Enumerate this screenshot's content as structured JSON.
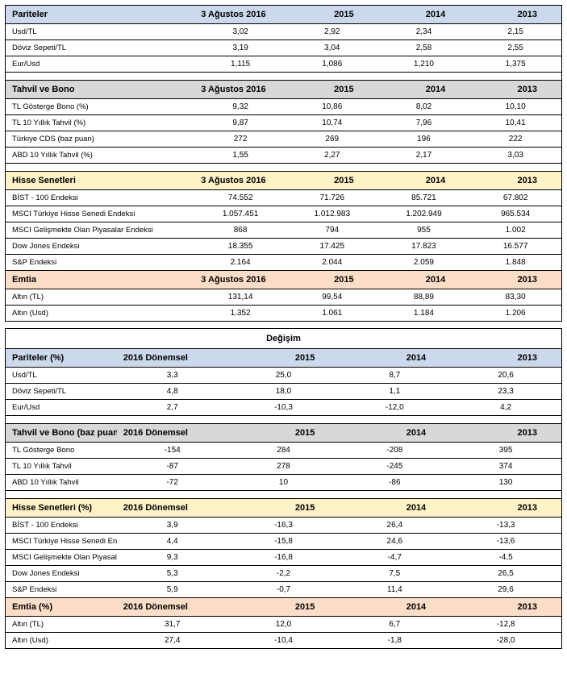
{
  "colors": {
    "blue": "#ccd9ec",
    "gray": "#d8d8d8",
    "yellow": "#fff2c7",
    "peach": "#fcdec8",
    "white": "#ffffff"
  },
  "absHeaders": [
    "3 Ağustos 2016",
    "2015",
    "2014",
    "2013"
  ],
  "chgHeaders": [
    "2016 Dönemsel",
    "2015",
    "2014",
    "2013"
  ],
  "changeTitle": "Değişim",
  "sections_abs": [
    {
      "title": "Pariteler",
      "hdrColor": "blue",
      "rows": [
        {
          "label": "Usd/TL",
          "vals": [
            "3,02",
            "2,92",
            "2,34",
            "2,15"
          ]
        },
        {
          "label": "Döviz Sepeti/TL",
          "vals": [
            "3,19",
            "3,04",
            "2,58",
            "2,55"
          ]
        },
        {
          "label": "Eur/Usd",
          "vals": [
            "1,115",
            "1,086",
            "1,210",
            "1,375"
          ]
        }
      ]
    },
    {
      "title": "Tahvil ve Bono",
      "hdrColor": "gray",
      "rows": [
        {
          "label": "TL Gösterge Bono (%)",
          "vals": [
            "9,32",
            "10,86",
            "8,02",
            "10,10"
          ]
        },
        {
          "label": "TL 10 Yıllık Tahvil (%)",
          "vals": [
            "9,87",
            "10,74",
            "7,96",
            "10,41"
          ]
        },
        {
          "label": "Türkiye CDS (baz puan)",
          "vals": [
            "272",
            "269",
            "196",
            "222"
          ]
        },
        {
          "label": "ABD 10 Yıllık Tahvil (%)",
          "vals": [
            "1,55",
            "2,27",
            "2,17",
            "3,03"
          ]
        }
      ]
    },
    {
      "title": "Hisse Senetleri",
      "hdrColor": "yellow",
      "rows": [
        {
          "label": "BİST - 100 Endeksi",
          "vals": [
            "74.552",
            "71.726",
            "85.721",
            "67.802"
          ]
        },
        {
          "label": "MSCI Türkiye Hisse Senedi Endeksi",
          "vals": [
            "1.057.451",
            "1.012.983",
            "1.202.949",
            "965.534"
          ]
        },
        {
          "label": "MSCI Gelişmekte Olan Piyasalar Endeksi",
          "vals": [
            "868",
            "794",
            "955",
            "1.002"
          ]
        },
        {
          "label": "Dow Jones Endeksi",
          "vals": [
            "18.355",
            "17.425",
            "17.823",
            "16.577"
          ]
        },
        {
          "label": "S&P Endeksi",
          "vals": [
            "2.164",
            "2.044",
            "2.059",
            "1.848"
          ]
        }
      ]
    },
    {
      "title": "Emtia",
      "hdrColor": "peach",
      "rows": [
        {
          "label": "Altın (TL)",
          "vals": [
            "131,14",
            "99,54",
            "88,89",
            "83,30"
          ]
        },
        {
          "label": "Altın (Usd)",
          "vals": [
            "1.352",
            "1.061",
            "1.184",
            "1.206"
          ]
        }
      ]
    }
  ],
  "sections_chg": [
    {
      "title": "Pariteler (%)",
      "hdrColor": "blue",
      "rows": [
        {
          "label": "Usd/TL",
          "vals": [
            "3,3",
            "25,0",
            "8,7",
            "20,6"
          ]
        },
        {
          "label": "Döviz Sepeti/TL",
          "vals": [
            "4,8",
            "18,0",
            "1,1",
            "23,3"
          ]
        },
        {
          "label": "Eur/Usd",
          "vals": [
            "2,7",
            "-10,3",
            "-12,0",
            "4,2"
          ]
        }
      ]
    },
    {
      "title": "Tahvil ve Bono (baz puan)",
      "hdrColor": "gray",
      "rows": [
        {
          "label": "TL Gösterge Bono",
          "vals": [
            "-154",
            "284",
            "-208",
            "395"
          ]
        },
        {
          "label": "TL 10 Yıllık Tahvil",
          "vals": [
            "-87",
            "278",
            "-245",
            "374"
          ]
        },
        {
          "label": "ABD 10 Yıllık Tahvil",
          "vals": [
            "-72",
            "10",
            "-86",
            "130"
          ]
        }
      ]
    },
    {
      "title": "Hisse Senetleri (%)",
      "hdrColor": "yellow",
      "rows": [
        {
          "label": "BİST - 100 Endeksi",
          "vals": [
            "3,9",
            "-16,3",
            "26,4",
            "-13,3"
          ]
        },
        {
          "label": "MSCI Türkiye Hisse Senedi Endeksi",
          "vals": [
            "4,4",
            "-15,8",
            "24,6",
            "-13,6"
          ]
        },
        {
          "label": "MSCI Gelişmekte Olan Piyasalar Endeksi",
          "vals": [
            "9,3",
            "-16,8",
            "-4,7",
            "-4,5"
          ]
        },
        {
          "label": "Dow Jones Endeksi",
          "vals": [
            "5,3",
            "-2,2",
            "7,5",
            "26,5"
          ]
        },
        {
          "label": "S&P Endeksi",
          "vals": [
            "5,9",
            "-0,7",
            "11,4",
            "29,6"
          ]
        }
      ]
    },
    {
      "title": "Emtia (%)",
      "hdrColor": "peach",
      "rows": [
        {
          "label": "Altın (TL)",
          "vals": [
            "31,7",
            "12,0",
            "6,7",
            "-12,8"
          ]
        },
        {
          "label": "Altın (Usd)",
          "vals": [
            "27,4",
            "-10,4",
            "-1,8",
            "-28,0"
          ]
        }
      ]
    }
  ]
}
